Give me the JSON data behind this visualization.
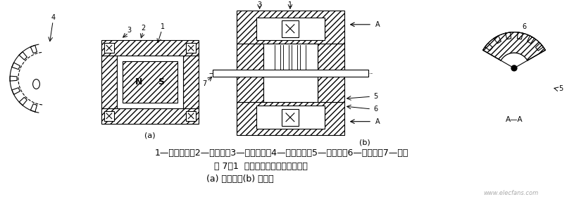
{
  "fig_width": 8.15,
  "fig_height": 3.07,
  "dpi": 100,
  "bg_color": "#ffffff",
  "line_color": "#000000",
  "label_line1": "1—永久磁铁；2—软磁铁；3—感应线圈；4—测量齿轮；5—内齿轮；6—外齿轮；7—转轴",
  "label_line2": "图 7-1  变磁通式磁电传感器结构图",
  "label_line3": "(a) 开磁路；(b) 闭磁路",
  "watermark": "www.elecfans.com"
}
